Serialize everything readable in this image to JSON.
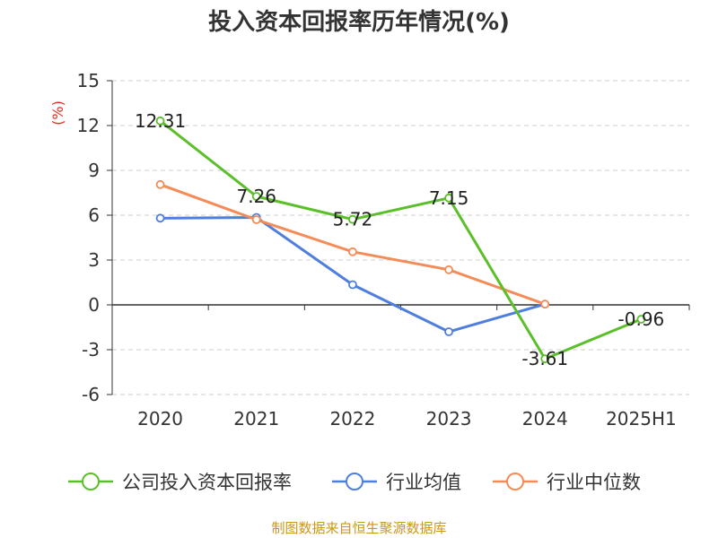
{
  "chart_data": {
    "type": "line",
    "title": "投入资本回报率历年情况(%)",
    "ylabel": "(%)",
    "xlabel": "",
    "categories": [
      "2020",
      "2021",
      "2022",
      "2023",
      "2024",
      "2025H1"
    ],
    "ylim": [
      -6,
      15
    ],
    "yticks": [
      15,
      12,
      9,
      6,
      3,
      0,
      -3,
      -6
    ],
    "grid": true,
    "legend_position": "bottom",
    "series": [
      {
        "name": "公司投入资本回报率",
        "color": "#5bbf2a",
        "values": [
          12.31,
          7.26,
          5.72,
          7.15,
          -3.61,
          -0.96
        ],
        "labels": [
          "12.31",
          "7.26",
          "5.72",
          "7.15",
          "-3.61",
          "-0.96"
        ]
      },
      {
        "name": "行业均值",
        "color": "#4f7fdc",
        "values": [
          5.8,
          5.85,
          1.35,
          -1.8,
          0.05,
          null
        ]
      },
      {
        "name": "行业中位数",
        "color": "#f58b57",
        "values": [
          8.05,
          5.7,
          3.55,
          2.35,
          0.05,
          null
        ]
      }
    ]
  },
  "source": "制图数据来自恒生聚源数据库"
}
